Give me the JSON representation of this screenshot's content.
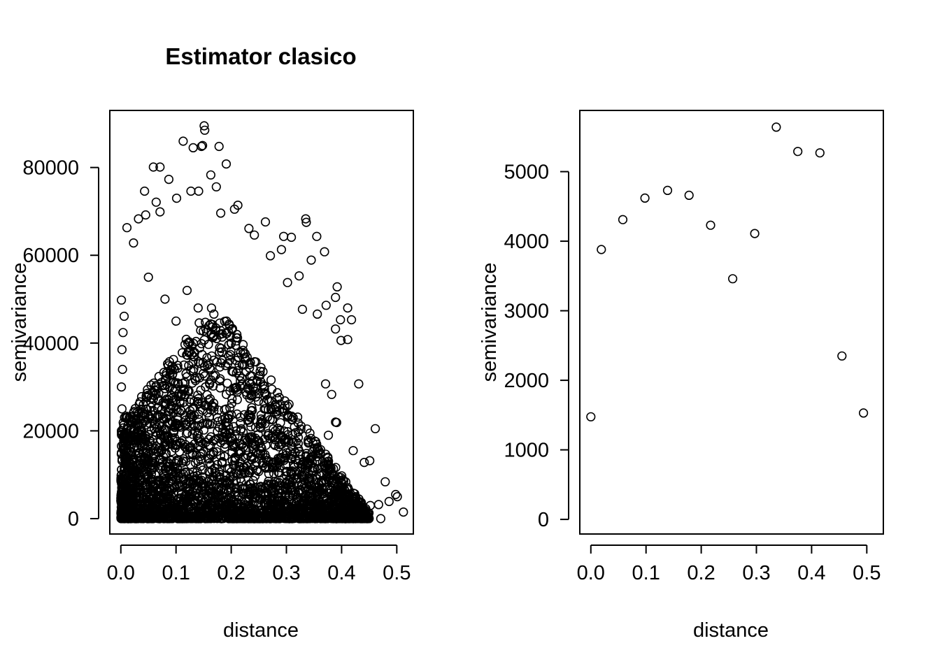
{
  "chart_data": [
    {
      "type": "scatter",
      "title": "Estimator clasico",
      "xlabel": "distance",
      "ylabel": "semivariance",
      "xlim": [
        -0.02,
        0.53
      ],
      "ylim": [
        -3500,
        93000
      ],
      "xticks": [
        0.0,
        0.1,
        0.2,
        0.3,
        0.4,
        0.5
      ],
      "xtick_labels": [
        "0.0",
        "0.1",
        "0.2",
        "0.3",
        "0.4",
        "0.5"
      ],
      "yticks": [
        0,
        20000,
        40000,
        60000,
        80000
      ],
      "ytick_labels": [
        "0",
        "20000",
        "40000",
        "60000",
        "80000"
      ],
      "marker": "open-circle",
      "grid": false,
      "note_points": "dense cloud of pairwise semivariances (cloud variogram); representative subset listed",
      "points": [
        [
          0.151,
          89500
        ],
        [
          0.152,
          88500
        ],
        [
          0.113,
          86000
        ],
        [
          0.148,
          85000
        ],
        [
          0.146,
          84800
        ],
        [
          0.131,
          84500
        ],
        [
          0.178,
          84800
        ],
        [
          0.191,
          80800
        ],
        [
          0.059,
          80100
        ],
        [
          0.071,
          80100
        ],
        [
          0.163,
          78300
        ],
        [
          0.087,
          77300
        ],
        [
          0.043,
          74600
        ],
        [
          0.127,
          74600
        ],
        [
          0.141,
          74600
        ],
        [
          0.173,
          75600
        ],
        [
          0.064,
          72100
        ],
        [
          0.101,
          73000
        ],
        [
          0.212,
          71400
        ],
        [
          0.071,
          69900
        ],
        [
          0.045,
          69200
        ],
        [
          0.181,
          69600
        ],
        [
          0.206,
          70500
        ],
        [
          0.032,
          68300
        ],
        [
          0.335,
          68300
        ],
        [
          0.336,
          67500
        ],
        [
          0.262,
          67600
        ],
        [
          0.011,
          66300
        ],
        [
          0.232,
          66100
        ],
        [
          0.023,
          62800
        ],
        [
          0.295,
          64300
        ],
        [
          0.309,
          64100
        ],
        [
          0.355,
          64300
        ],
        [
          0.242,
          64600
        ],
        [
          0.291,
          61300
        ],
        [
          0.369,
          60800
        ],
        [
          0.323,
          55300
        ],
        [
          0.345,
          58900
        ],
        [
          0.271,
          59900
        ],
        [
          0.392,
          52800
        ],
        [
          0.302,
          53800
        ],
        [
          0.389,
          50400
        ],
        [
          0.411,
          48000
        ],
        [
          0.372,
          48600
        ],
        [
          0.398,
          45300
        ],
        [
          0.418,
          45300
        ],
        [
          0.329,
          47700
        ],
        [
          0.356,
          46600
        ],
        [
          0.389,
          43200
        ],
        [
          0.411,
          40800
        ],
        [
          0.399,
          40600
        ],
        [
          0.431,
          30700
        ],
        [
          0.382,
          28300
        ],
        [
          0.371,
          30700
        ],
        [
          0.389,
          22000
        ],
        [
          0.376,
          19000
        ],
        [
          0.391,
          21900
        ],
        [
          0.461,
          20500
        ],
        [
          0.421,
          15500
        ],
        [
          0.441,
          12800
        ],
        [
          0.451,
          13200
        ],
        [
          0.479,
          8400
        ],
        [
          0.498,
          5500
        ],
        [
          0.501,
          5000
        ],
        [
          0.512,
          1500
        ],
        [
          0.486,
          3900
        ],
        [
          0.467,
          3200
        ],
        [
          0.471,
          0
        ],
        [
          0.452,
          3000
        ],
        [
          0.001,
          49800
        ],
        [
          0.006,
          46100
        ],
        [
          0.004,
          42400
        ],
        [
          0.002,
          38500
        ],
        [
          0.003,
          34000
        ],
        [
          0.001,
          30000
        ],
        [
          0.002,
          25000
        ],
        [
          0.001,
          20000
        ],
        [
          0.001,
          15000
        ],
        [
          0.001,
          10000
        ],
        [
          0.002,
          5000
        ],
        [
          0.001,
          1000
        ],
        [
          0.05,
          55000
        ],
        [
          0.08,
          50000
        ],
        [
          0.1,
          45000
        ],
        [
          0.12,
          52000
        ],
        [
          0.14,
          48000
        ],
        [
          0.16,
          44000
        ],
        [
          0.18,
          42000
        ],
        [
          0.2,
          40000
        ],
        [
          0.22,
          35000
        ],
        [
          0.24,
          30000
        ],
        [
          0.26,
          25000
        ],
        [
          0.28,
          20000
        ],
        [
          0.3,
          15000
        ],
        [
          0.32,
          10000
        ],
        [
          0.34,
          8000
        ],
        [
          0.36,
          6000
        ],
        [
          0.38,
          4000
        ],
        [
          0.4,
          3000
        ],
        [
          0.42,
          2000
        ]
      ]
    },
    {
      "type": "scatter",
      "title": "",
      "xlabel": "distance",
      "ylabel": "semivariance",
      "xlim": [
        -0.02,
        0.53
      ],
      "ylim": [
        -210,
        5880
      ],
      "xticks": [
        0.0,
        0.1,
        0.2,
        0.3,
        0.4,
        0.5
      ],
      "xtick_labels": [
        "0.0",
        "0.1",
        "0.2",
        "0.3",
        "0.4",
        "0.5"
      ],
      "yticks": [
        0,
        1000,
        2000,
        3000,
        4000,
        5000
      ],
      "ytick_labels": [
        "0",
        "1000",
        "2000",
        "3000",
        "4000",
        "5000"
      ],
      "marker": "open-circle",
      "grid": false,
      "points": [
        [
          0.0,
          1475
        ],
        [
          0.019,
          3880
        ],
        [
          0.058,
          4310
        ],
        [
          0.098,
          4620
        ],
        [
          0.139,
          4730
        ],
        [
          0.178,
          4660
        ],
        [
          0.217,
          4230
        ],
        [
          0.257,
          3460
        ],
        [
          0.297,
          4110
        ],
        [
          0.336,
          5640
        ],
        [
          0.375,
          5290
        ],
        [
          0.415,
          5270
        ],
        [
          0.455,
          2350
        ],
        [
          0.494,
          1530
        ]
      ]
    }
  ]
}
